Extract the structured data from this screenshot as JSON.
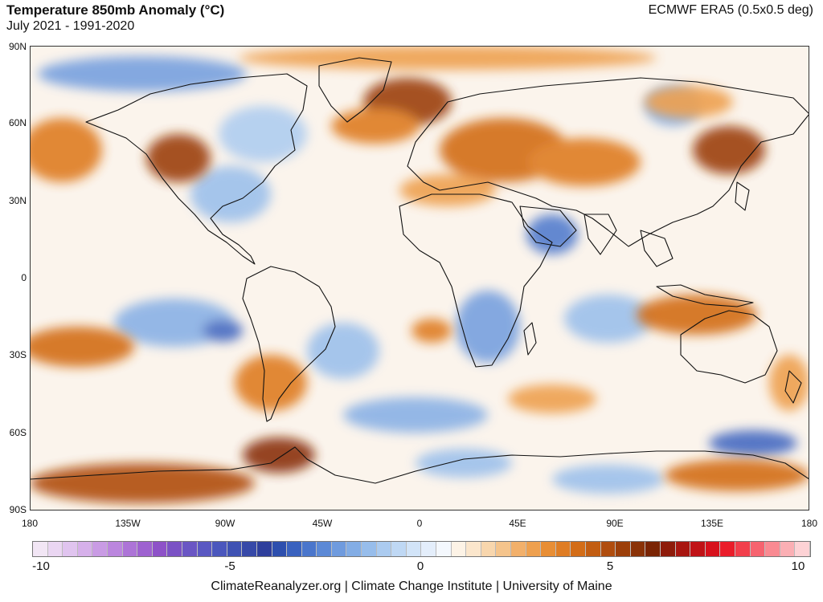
{
  "header": {
    "title": "Temperature 850mb Anomaly (°C)",
    "subtitle": "July 2021 - 1991-2020",
    "source": "ECMWF ERA5 (0.5x0.5 deg)"
  },
  "axes": {
    "lat_labels": [
      "90N",
      "60N",
      "30N",
      "0",
      "30S",
      "60S",
      "90S"
    ],
    "lon_labels": [
      "180",
      "135W",
      "90W",
      "45W",
      "0",
      "45E",
      "90E",
      "135E",
      "180"
    ]
  },
  "colorbar": {
    "labels": [
      "-10",
      "-5",
      "0",
      "5",
      "10"
    ],
    "colors": [
      "#f2e6f5",
      "#ead6f2",
      "#e0c4ef",
      "#d6b0ea",
      "#c99be4",
      "#bb86de",
      "#ad74d7",
      "#9e62d0",
      "#8e52c8",
      "#7b52c5",
      "#6a56c4",
      "#5a58c2",
      "#4b57bd",
      "#3f52b3",
      "#3749a8",
      "#2f3f9c",
      "#2d4fae",
      "#3a62bf",
      "#4a76cc",
      "#5c89d6",
      "#6f9bde",
      "#83ade5",
      "#97bdeb",
      "#abcbf0",
      "#bfd8f4",
      "#d2e4f8",
      "#e4eefb",
      "#f4f8fd",
      "#fdf3e6",
      "#fbe6cc",
      "#f8d6ad",
      "#f5c48c",
      "#f2b06b",
      "#eea04f",
      "#e88e35",
      "#df7d24",
      "#d36d18",
      "#c25d12",
      "#b04d0e",
      "#9c3f0a",
      "#8a3207",
      "#7a2404",
      "#8e1b0a",
      "#a81610",
      "#c01216",
      "#d7111c",
      "#ea1d2a",
      "#f23f4c",
      "#f6636f",
      "#f98a92",
      "#fbafb4",
      "#fdd2d5"
    ]
  },
  "map": {
    "background_color": "#fdfbf8",
    "cold_color": "#6f9bde",
    "warm_color": "#df7d24",
    "strong_warm_color": "#9c3f0a"
  },
  "footer": {
    "credit": "ClimateReanalyzer.org | Climate Change Institute | University of Maine"
  }
}
